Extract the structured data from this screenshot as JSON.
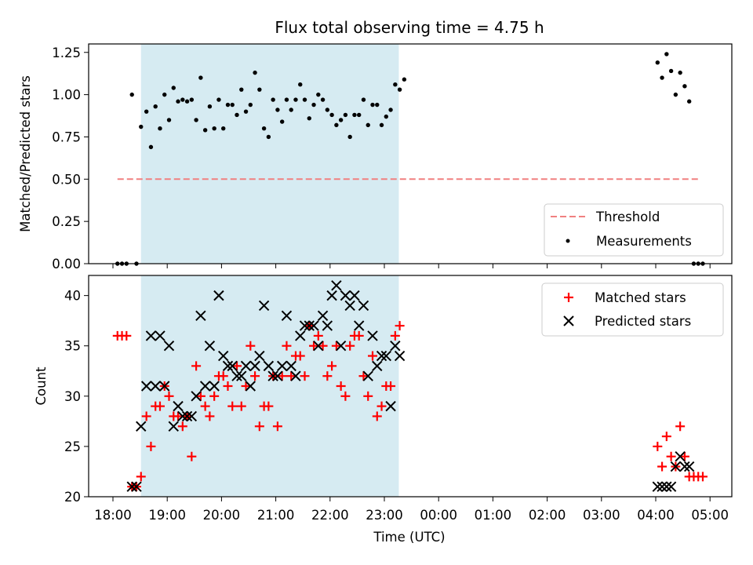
{
  "chart_data": [
    {
      "type": "scatter",
      "title": "Flux total observing time = 4.75 h",
      "xlabel": "",
      "ylabel": "Matched/Predicted stars",
      "ylim": [
        0,
        1.3
      ],
      "yticks": [
        "0.00",
        "0.25",
        "0.50",
        "0.75",
        "1.00",
        "1.25"
      ],
      "shaded_span": [
        "18:31",
        "23:16"
      ],
      "legend": {
        "placement": "lower-right",
        "entries": [
          "Threshold",
          "Measurements"
        ]
      },
      "threshold": {
        "name": "Threshold",
        "y": 0.5,
        "x_range": [
          "18:05",
          "04:50"
        ],
        "color": "#f08080"
      },
      "measurements": {
        "name": "Measurements",
        "color": "#000000",
        "points": [
          [
            "18:05",
            0
          ],
          [
            "18:10",
            0
          ],
          [
            "18:15",
            0
          ],
          [
            "18:21",
            1.0
          ],
          [
            "18:26",
            0
          ],
          [
            "18:31",
            0.81
          ],
          [
            "18:37",
            0.9
          ],
          [
            "18:42",
            0.69
          ],
          [
            "18:47",
            0.93
          ],
          [
            "18:52",
            0.8
          ],
          [
            "18:57",
            1.0
          ],
          [
            "19:02",
            0.85
          ],
          [
            "19:07",
            1.04
          ],
          [
            "19:12",
            0.96
          ],
          [
            "19:17",
            0.97
          ],
          [
            "19:22",
            0.96
          ],
          [
            "19:27",
            0.97
          ],
          [
            "19:32",
            0.85
          ],
          [
            "19:37",
            1.1
          ],
          [
            "19:42",
            0.79
          ],
          [
            "19:47",
            0.93
          ],
          [
            "19:52",
            0.8
          ],
          [
            "19:57",
            0.97
          ],
          [
            "20:02",
            0.8
          ],
          [
            "20:07",
            0.94
          ],
          [
            "20:12",
            0.94
          ],
          [
            "20:17",
            0.88
          ],
          [
            "20:22",
            1.03
          ],
          [
            "20:27",
            0.9
          ],
          [
            "20:32",
            0.94
          ],
          [
            "20:37",
            1.13
          ],
          [
            "20:42",
            1.03
          ],
          [
            "20:47",
            0.8
          ],
          [
            "20:52",
            0.75
          ],
          [
            "20:57",
            0.97
          ],
          [
            "21:02",
            0.91
          ],
          [
            "21:07",
            0.84
          ],
          [
            "21:12",
            0.97
          ],
          [
            "21:17",
            0.91
          ],
          [
            "21:22",
            0.97
          ],
          [
            "21:27",
            1.06
          ],
          [
            "21:32",
            0.97
          ],
          [
            "21:37",
            0.86
          ],
          [
            "21:42",
            0.94
          ],
          [
            "21:47",
            1.0
          ],
          [
            "21:52",
            0.97
          ],
          [
            "21:57",
            0.91
          ],
          [
            "22:02",
            0.88
          ],
          [
            "22:07",
            0.82
          ],
          [
            "22:12",
            0.85
          ],
          [
            "22:17",
            0.88
          ],
          [
            "22:22",
            0.75
          ],
          [
            "22:27",
            0.88
          ],
          [
            "22:32",
            0.88
          ],
          [
            "22:37",
            0.97
          ],
          [
            "22:42",
            0.82
          ],
          [
            "22:47",
            0.94
          ],
          [
            "22:52",
            0.94
          ],
          [
            "22:57",
            0.82
          ],
          [
            "23:02",
            0.87
          ],
          [
            "23:07",
            0.91
          ],
          [
            "23:12",
            1.06
          ],
          [
            "23:17",
            1.03
          ],
          [
            "23:22",
            1.09
          ],
          [
            "04:02",
            1.19
          ],
          [
            "04:07",
            1.1
          ],
          [
            "04:12",
            1.24
          ],
          [
            "04:17",
            1.14
          ],
          [
            "04:22",
            1.0
          ],
          [
            "04:27",
            1.13
          ],
          [
            "04:32",
            1.05
          ],
          [
            "04:37",
            0.96
          ],
          [
            "04:42",
            0
          ],
          [
            "04:47",
            0
          ],
          [
            "04:52",
            0
          ]
        ]
      }
    },
    {
      "type": "scatter",
      "title": "",
      "xlabel": "Time (UTC)",
      "ylabel": "Count",
      "ylim": [
        20,
        42
      ],
      "yticks": [
        "20",
        "25",
        "30",
        "35",
        "40"
      ],
      "xticks": [
        "18:00",
        "19:00",
        "20:00",
        "21:00",
        "22:00",
        "23:00",
        "00:00",
        "01:00",
        "02:00",
        "03:00",
        "04:00",
        "05:00"
      ],
      "shaded_span": [
        "18:31",
        "23:16"
      ],
      "legend": {
        "placement": "top-right",
        "entries": [
          "Matched stars",
          "Predicted stars"
        ]
      },
      "series": [
        {
          "name": "Matched stars",
          "marker": "+",
          "color": "#ff0000",
          "points": [
            [
              "18:05",
              36
            ],
            [
              "18:10",
              36
            ],
            [
              "18:15",
              36
            ],
            [
              "18:21",
              21
            ],
            [
              "18:26",
              21
            ],
            [
              "18:31",
              22
            ],
            [
              "18:37",
              28
            ],
            [
              "18:42",
              25
            ],
            [
              "18:47",
              29
            ],
            [
              "18:52",
              29
            ],
            [
              "18:57",
              31
            ],
            [
              "19:02",
              30
            ],
            [
              "19:07",
              28
            ],
            [
              "19:12",
              28
            ],
            [
              "19:17",
              27
            ],
            [
              "19:22",
              28
            ],
            [
              "19:27",
              24
            ],
            [
              "19:32",
              33
            ],
            [
              "19:37",
              30
            ],
            [
              "19:42",
              29
            ],
            [
              "19:47",
              28
            ],
            [
              "19:52",
              30
            ],
            [
              "19:57",
              32
            ],
            [
              "20:02",
              32
            ],
            [
              "20:07",
              31
            ],
            [
              "20:12",
              29
            ],
            [
              "20:17",
              33
            ],
            [
              "20:22",
              29
            ],
            [
              "20:27",
              31
            ],
            [
              "20:32",
              35
            ],
            [
              "20:37",
              32
            ],
            [
              "20:42",
              27
            ],
            [
              "20:47",
              29
            ],
            [
              "20:52",
              29
            ],
            [
              "20:57",
              32
            ],
            [
              "21:02",
              27
            ],
            [
              "21:07",
              32
            ],
            [
              "21:12",
              35
            ],
            [
              "21:17",
              32
            ],
            [
              "21:22",
              34
            ],
            [
              "21:27",
              34
            ],
            [
              "21:32",
              32
            ],
            [
              "21:37",
              37
            ],
            [
              "21:42",
              35
            ],
            [
              "21:47",
              36
            ],
            [
              "21:52",
              35
            ],
            [
              "21:57",
              32
            ],
            [
              "22:02",
              33
            ],
            [
              "22:07",
              35
            ],
            [
              "22:12",
              31
            ],
            [
              "22:17",
              30
            ],
            [
              "22:22",
              35
            ],
            [
              "22:27",
              36
            ],
            [
              "22:32",
              36
            ],
            [
              "22:37",
              32
            ],
            [
              "22:42",
              30
            ],
            [
              "22:47",
              34
            ],
            [
              "22:52",
              28
            ],
            [
              "22:57",
              29
            ],
            [
              "23:02",
              31
            ],
            [
              "23:07",
              31
            ],
            [
              "23:12",
              36
            ],
            [
              "23:17",
              37
            ],
            [
              "04:02",
              25
            ],
            [
              "04:07",
              23
            ],
            [
              "04:12",
              26
            ],
            [
              "04:17",
              24
            ],
            [
              "04:22",
              23
            ],
            [
              "04:27",
              27
            ],
            [
              "04:32",
              24
            ],
            [
              "04:37",
              22
            ],
            [
              "04:42",
              22
            ],
            [
              "04:47",
              22
            ],
            [
              "04:52",
              22
            ]
          ]
        },
        {
          "name": "Predicted stars",
          "marker": "x",
          "color": "#000000",
          "points": [
            [
              "18:21",
              21
            ],
            [
              "18:26",
              21
            ],
            [
              "18:31",
              27
            ],
            [
              "18:37",
              31
            ],
            [
              "18:42",
              36
            ],
            [
              "18:47",
              31
            ],
            [
              "18:52",
              36
            ],
            [
              "18:57",
              31
            ],
            [
              "19:02",
              35
            ],
            [
              "19:07",
              27
            ],
            [
              "19:12",
              29
            ],
            [
              "19:17",
              28
            ],
            [
              "19:22",
              28
            ],
            [
              "19:27",
              28
            ],
            [
              "19:32",
              30
            ],
            [
              "19:37",
              38
            ],
            [
              "19:42",
              31
            ],
            [
              "19:47",
              35
            ],
            [
              "19:52",
              31
            ],
            [
              "19:57",
              40
            ],
            [
              "20:02",
              34
            ],
            [
              "20:07",
              33
            ],
            [
              "20:12",
              33
            ],
            [
              "20:17",
              32
            ],
            [
              "20:22",
              32
            ],
            [
              "20:27",
              33
            ],
            [
              "20:32",
              31
            ],
            [
              "20:37",
              33
            ],
            [
              "20:42",
              34
            ],
            [
              "20:47",
              39
            ],
            [
              "20:52",
              33
            ],
            [
              "20:57",
              32
            ],
            [
              "21:02",
              32
            ],
            [
              "21:07",
              33
            ],
            [
              "21:12",
              38
            ],
            [
              "21:17",
              33
            ],
            [
              "21:22",
              32
            ],
            [
              "21:27",
              36
            ],
            [
              "21:32",
              37
            ],
            [
              "21:37",
              37
            ],
            [
              "21:42",
              37
            ],
            [
              "21:47",
              35
            ],
            [
              "21:52",
              38
            ],
            [
              "21:57",
              37
            ],
            [
              "22:02",
              40
            ],
            [
              "22:07",
              41
            ],
            [
              "22:12",
              35
            ],
            [
              "22:17",
              40
            ],
            [
              "22:22",
              39
            ],
            [
              "22:27",
              40
            ],
            [
              "22:32",
              37
            ],
            [
              "22:37",
              39
            ],
            [
              "22:42",
              32
            ],
            [
              "22:47",
              36
            ],
            [
              "22:52",
              33
            ],
            [
              "22:57",
              34
            ],
            [
              "23:02",
              34
            ],
            [
              "23:07",
              29
            ],
            [
              "23:12",
              35
            ],
            [
              "23:17",
              34
            ],
            [
              "04:02",
              21
            ],
            [
              "04:07",
              21
            ],
            [
              "04:12",
              21
            ],
            [
              "04:17",
              21
            ],
            [
              "04:22",
              23
            ],
            [
              "04:27",
              24
            ],
            [
              "04:32",
              23
            ],
            [
              "04:37",
              23
            ]
          ]
        }
      ]
    }
  ]
}
